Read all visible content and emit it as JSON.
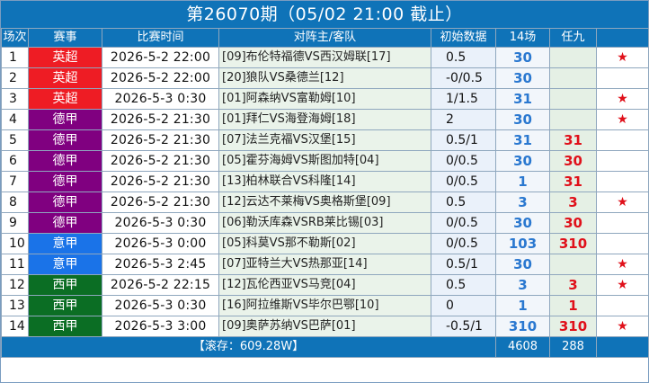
{
  "title": "第26070期（05/02 21:00 截止）",
  "headers": {
    "idx": "场次",
    "league": "赛事",
    "time": "比赛时间",
    "match": "对阵主/客队",
    "odds": "初始数据",
    "s14": "14场",
    "r9": "任九",
    "star": ""
  },
  "colors": {
    "英超": "#ee1c24",
    "德甲": "#800080",
    "意甲": "#1a73e8",
    "西甲": "#0b6e24"
  },
  "rows": [
    {
      "idx": "1",
      "league": "英超",
      "time": "2026-5-2 22:00",
      "match": "[09]布伦特福德VS西汉姆联[17]",
      "odds": "0.5",
      "s14": "30",
      "r9": "",
      "star": "★"
    },
    {
      "idx": "2",
      "league": "英超",
      "time": "2026-5-2 22:00",
      "match": "[20]狼队VS桑德兰[12]",
      "odds": "-0/0.5",
      "s14": "30",
      "r9": "",
      "star": ""
    },
    {
      "idx": "3",
      "league": "英超",
      "time": "2026-5-3 0:30",
      "match": "[01]阿森纳VS富勒姆[10]",
      "odds": "1/1.5",
      "s14": "31",
      "r9": "",
      "star": "★"
    },
    {
      "idx": "4",
      "league": "德甲",
      "time": "2026-5-2 21:30",
      "match": "[01]拜仁VS海登海姆[18]",
      "odds": "2",
      "s14": "30",
      "r9": "",
      "star": "★"
    },
    {
      "idx": "5",
      "league": "德甲",
      "time": "2026-5-2 21:30",
      "match": "[07]法兰克福VS汉堡[15]",
      "odds": "0.5/1",
      "s14": "31",
      "r9": "31",
      "star": ""
    },
    {
      "idx": "6",
      "league": "德甲",
      "time": "2026-5-2 21:30",
      "match": "[05]霍芬海姆VS斯图加特[04]",
      "odds": "0/0.5",
      "s14": "30",
      "r9": "30",
      "star": ""
    },
    {
      "idx": "7",
      "league": "德甲",
      "time": "2026-5-2 21:30",
      "match": "[13]柏林联合VS科隆[14]",
      "odds": "0/0.5",
      "s14": "1",
      "r9": "31",
      "star": ""
    },
    {
      "idx": "8",
      "league": "德甲",
      "time": "2026-5-2 21:30",
      "match": "[12]云达不莱梅VS奥格斯堡[09]",
      "odds": "0.5",
      "s14": "3",
      "r9": "3",
      "star": "★"
    },
    {
      "idx": "9",
      "league": "德甲",
      "time": "2026-5-3 0:30",
      "match": "[06]勒沃库森VSRB莱比锡[03]",
      "odds": "0/0.5",
      "s14": "30",
      "r9": "30",
      "star": ""
    },
    {
      "idx": "10",
      "league": "意甲",
      "time": "2026-5-3 0:00",
      "match": "[05]科莫VS那不勒斯[02]",
      "odds": "0/0.5",
      "s14": "103",
      "r9": "310",
      "star": ""
    },
    {
      "idx": "11",
      "league": "意甲",
      "time": "2026-5-3 2:45",
      "match": "[07]亚特兰大VS热那亚[14]",
      "odds": "0.5/1",
      "s14": "30",
      "r9": "",
      "star": "★"
    },
    {
      "idx": "12",
      "league": "西甲",
      "time": "2026-5-2 22:15",
      "match": "[12]瓦伦西亚VS马竞[04]",
      "odds": "0.5",
      "s14": "3",
      "r9": "3",
      "star": "★"
    },
    {
      "idx": "13",
      "league": "西甲",
      "time": "2026-5-3 0:30",
      "match": "[16]阿拉维斯VS毕尔巴鄂[10]",
      "odds": "0",
      "s14": "1",
      "r9": "1",
      "star": ""
    },
    {
      "idx": "14",
      "league": "西甲",
      "time": "2026-5-3 3:00",
      "match": "[09]奥萨苏纳VS巴萨[01]",
      "odds": "-0.5/1",
      "s14": "310",
      "r9": "310",
      "star": "★"
    }
  ],
  "footer": {
    "rolling": "【滚存：609.28W】",
    "total14": "4608",
    "total9": "288",
    "blank": ""
  }
}
